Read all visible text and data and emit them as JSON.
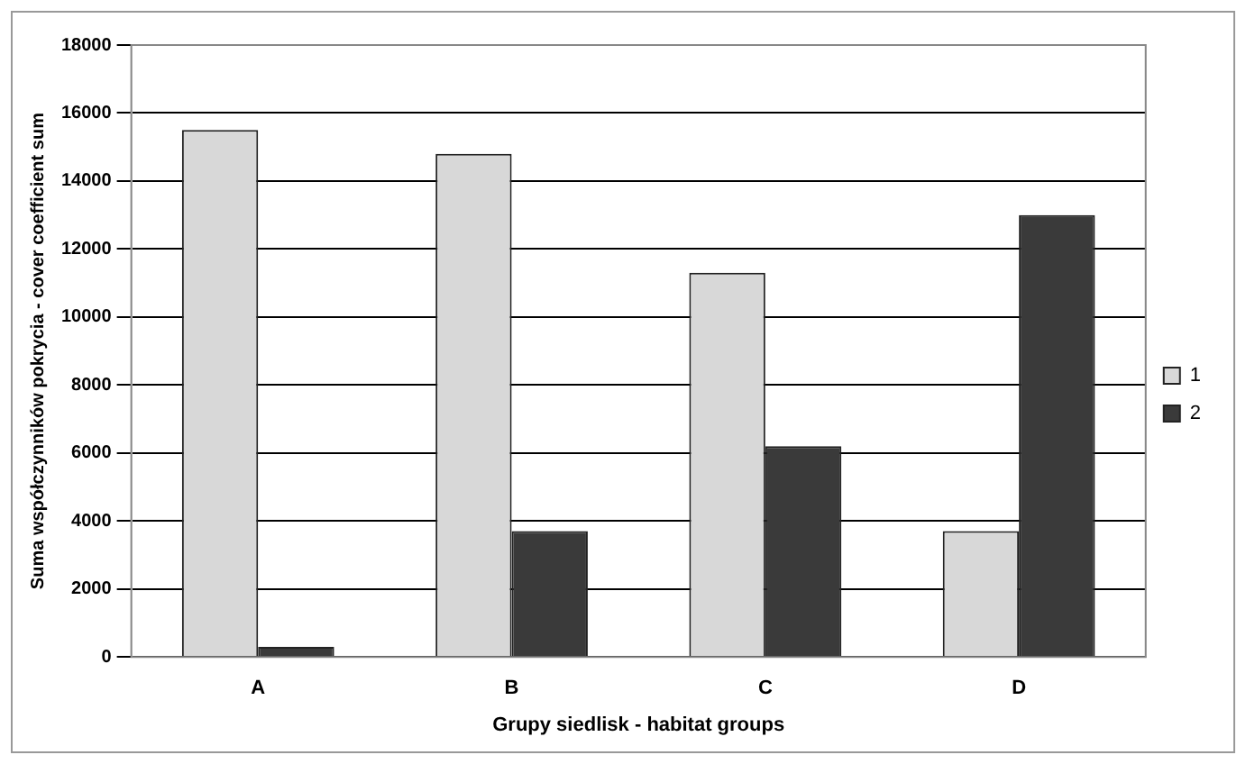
{
  "chart_data": {
    "type": "bar",
    "xlabel": "Grupy siedlisk - habitat groups",
    "ylabel": "Suma współczynników pokrycia - cover coefficient sum",
    "categories": [
      "A",
      "B",
      "C",
      "D"
    ],
    "series": [
      {
        "name": "1",
        "color": "#d8d8d8",
        "values": [
          15500,
          14800,
          11300,
          3700
        ]
      },
      {
        "name": "2",
        "color": "#3a3a3a",
        "values": [
          300,
          3700,
          6200,
          13000
        ]
      }
    ],
    "ylim": [
      0,
      18000
    ],
    "yticks": [
      0,
      2000,
      4000,
      6000,
      8000,
      10000,
      12000,
      14000,
      16000,
      18000
    ],
    "grid": "y",
    "legend": "right"
  }
}
